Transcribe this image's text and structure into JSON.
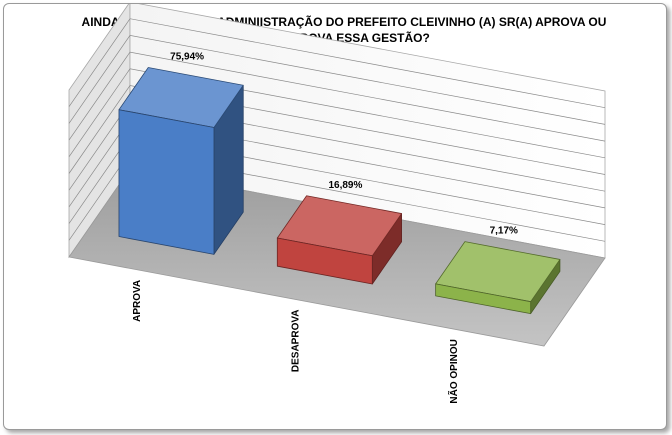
{
  "chart_data": {
    "type": "bar",
    "title": "AINDA EM RELAÇÃO A ADMINIISTRAÇÃO DO PREFEITO CLEIVINHO (A) SR(A) APROVA OU\nDESAPROVA  ESSA GESTÃO?",
    "categories": [
      "APROVA",
      "DESAPROVA",
      "NÃO OPINOU"
    ],
    "values": [
      75.94,
      16.89,
      7.17
    ],
    "data_labels": [
      "75,94%",
      "16,89%",
      "7,17%"
    ],
    "colors": [
      "#4a7ec7",
      "#c0443f",
      "#8cb34a"
    ],
    "ylim": [
      0,
      100
    ],
    "grid": true,
    "legend": "none",
    "style": "3d"
  }
}
